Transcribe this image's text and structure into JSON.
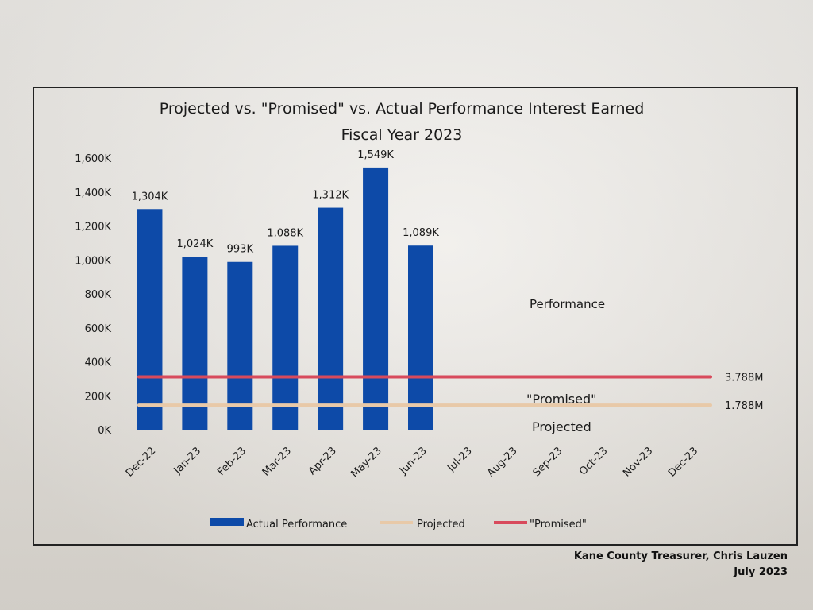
{
  "chart_data": {
    "type": "bar",
    "title": "Projected vs. \"Promised\" vs. Actual Performance Interest Earned",
    "subtitle": "Fiscal Year 2023",
    "categories": [
      "Dec-22",
      "Jan-23",
      "Feb-23",
      "Mar-23",
      "Apr-23",
      "May-23",
      "Jun-23",
      "Jul-23",
      "Aug-23",
      "Sep-23",
      "Oct-23",
      "Nov-23",
      "Dec-23"
    ],
    "series": [
      {
        "name": "Actual Performance",
        "kind": "bar",
        "color": "#0d4aa8",
        "values": [
          1304,
          1024,
          993,
          1088,
          1312,
          1549,
          1089,
          null,
          null,
          null,
          null,
          null,
          null
        ],
        "data_labels": [
          "1,304K",
          "1,024K",
          "993K",
          "1,088K",
          "1,312K",
          "1,549K",
          "1,089K"
        ]
      },
      {
        "name": "Projected",
        "kind": "line",
        "color": "#e8c9a8",
        "value": 149,
        "end_label": "1.788M"
      },
      {
        "name": "\"Promised\"",
        "kind": "line",
        "color": "#d84a5c",
        "value": 316,
        "end_label": "3.788M"
      }
    ],
    "yticks": [
      "0K",
      "200K",
      "400K",
      "600K",
      "800K",
      "1,000K",
      "1,200K",
      "1,400K",
      "1,600K"
    ],
    "ylim": [
      0,
      1600
    ],
    "grid": false,
    "legend_position": "bottom",
    "annotations": [
      "Performance",
      "\"Promised\"",
      "Projected"
    ]
  },
  "footer": {
    "line1": "Kane County Treasurer, Chris Lauzen",
    "line2": "July 2023"
  }
}
